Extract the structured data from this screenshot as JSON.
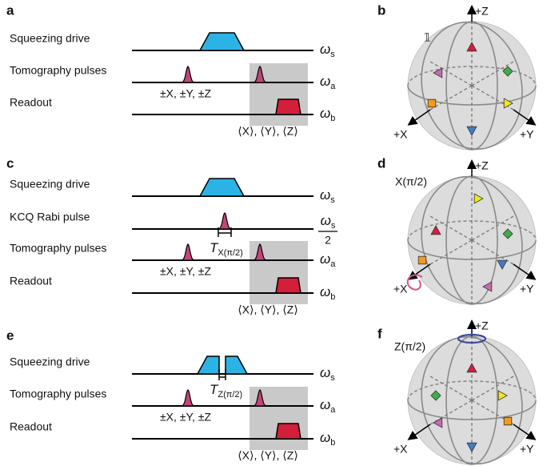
{
  "panels": [
    {
      "label": "a",
      "rows": [
        {
          "name": "Squeezing drive",
          "freq": {
            "symbol": "ω",
            "sub": "s"
          }
        },
        {
          "name": "Tomography pulses",
          "freq": {
            "symbol": "ω",
            "sub": "a"
          }
        },
        {
          "name": "Readout",
          "freq": {
            "symbol": "ω",
            "sub": "b"
          }
        }
      ],
      "pulse_label": "±X, ±Y, ±Z",
      "readout_label": "⟨X⟩, ⟨Y⟩, ⟨Z⟩"
    },
    {
      "label": "b",
      "identity": "𝟙",
      "axes": {
        "z": "+Z",
        "x": "+X",
        "y": "+Y"
      }
    },
    {
      "label": "c",
      "rows": [
        {
          "name": "Squeezing drive",
          "freq": {
            "symbol": "ω",
            "sub": "s"
          }
        },
        {
          "name": "KCQ Rabi pulse",
          "freq": {
            "symbol": "ω",
            "sub": "s",
            "denominator": "2"
          }
        },
        {
          "name": "Tomography pulses",
          "freq": {
            "symbol": "ω",
            "sub": "a"
          }
        },
        {
          "name": "Readout",
          "freq": {
            "symbol": "ω",
            "sub": "b"
          }
        }
      ],
      "duration_label": {
        "symbol": "T",
        "sub": "X(π/2)"
      },
      "pulse_label": "±X, ±Y, ±Z",
      "readout_label": "⟨X⟩, ⟨Y⟩, ⟨Z⟩"
    },
    {
      "label": "d",
      "operation": "X(π/2)",
      "axes": {
        "z": "+Z",
        "x": "+X",
        "y": "+Y"
      }
    },
    {
      "label": "e",
      "rows": [
        {
          "name": "Squeezing drive",
          "freq": {
            "symbol": "ω",
            "sub": "s"
          }
        },
        {
          "name": "Tomography pulses",
          "freq": {
            "symbol": "ω",
            "sub": "a"
          }
        },
        {
          "name": "Readout",
          "freq": {
            "symbol": "ω",
            "sub": "b"
          }
        }
      ],
      "duration_label": {
        "symbol": "T",
        "sub": "Z(π/2)"
      },
      "pulse_label": "±X, ±Y, ±Z",
      "readout_label": "⟨X⟩, ⟨Y⟩, ⟨Z⟩"
    },
    {
      "label": "f",
      "operation": "Z(π/2)",
      "axes": {
        "z": "+Z",
        "x": "+X",
        "y": "+Y"
      }
    }
  ]
}
